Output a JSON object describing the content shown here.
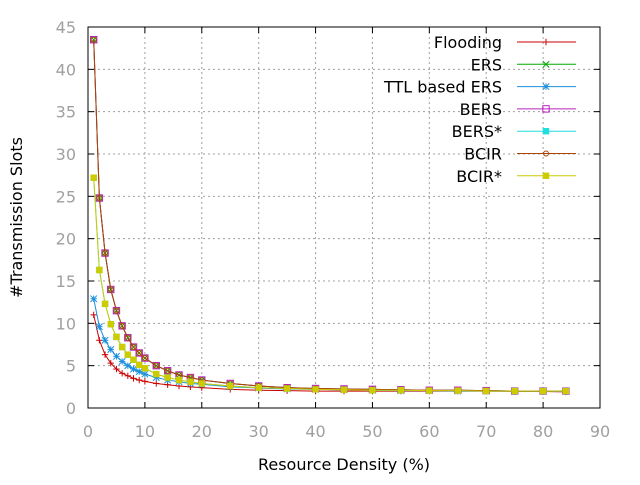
{
  "chart_data": {
    "type": "line",
    "xlabel": "Resource Density (%)",
    "ylabel": "#Transmission Slots",
    "xlim": [
      0,
      90
    ],
    "ylim": [
      0,
      45
    ],
    "xticks": [
      "0",
      "10",
      "20",
      "30",
      "40",
      "50",
      "60",
      "70",
      "80",
      "90"
    ],
    "yticks": [
      "0",
      "5",
      "10",
      "15",
      "20",
      "25",
      "30",
      "35",
      "40",
      "45"
    ],
    "grid": true,
    "legend_position": "top-right",
    "x": [
      1,
      2,
      3,
      4,
      5,
      6,
      7,
      8,
      9,
      10,
      12,
      14,
      16,
      18,
      20,
      25,
      30,
      35,
      40,
      45,
      50,
      55,
      60,
      65,
      70,
      75,
      80,
      84
    ],
    "series": [
      {
        "name": "Flooding",
        "color": "#cc0000",
        "marker": "plus",
        "values": [
          11.0,
          8.0,
          6.3,
          5.3,
          4.6,
          4.1,
          3.8,
          3.5,
          3.3,
          3.15,
          2.9,
          2.75,
          2.6,
          2.5,
          2.4,
          2.2,
          2.1,
          2.05,
          2.0,
          2.0,
          2.0,
          2.0,
          2.0,
          2.0,
          2.0,
          1.95,
          1.95,
          1.9
        ]
      },
      {
        "name": "ERS",
        "color": "#00aa00",
        "marker": "cross",
        "values": [
          43.5,
          24.8,
          18.3,
          14.0,
          11.5,
          9.7,
          8.3,
          7.2,
          6.5,
          5.9,
          5.0,
          4.4,
          3.9,
          3.6,
          3.3,
          2.9,
          2.6,
          2.4,
          2.3,
          2.25,
          2.2,
          2.15,
          2.1,
          2.1,
          2.05,
          2.0,
          2.0,
          2.0
        ]
      },
      {
        "name": "TTL based ERS",
        "color": "#1a8fdd",
        "marker": "star",
        "values": [
          12.9,
          9.6,
          8.0,
          6.9,
          6.1,
          5.5,
          5.0,
          4.6,
          4.3,
          4.0,
          3.6,
          3.3,
          3.1,
          2.9,
          2.8,
          2.5,
          2.35,
          2.25,
          2.2,
          2.15,
          2.1,
          2.05,
          2.05,
          2.0,
          2.0,
          2.0,
          2.0,
          1.95
        ]
      },
      {
        "name": "BERS",
        "color": "#bb22bb",
        "marker": "square-open",
        "values": [
          43.5,
          24.8,
          18.3,
          14.0,
          11.5,
          9.7,
          8.3,
          7.2,
          6.5,
          5.9,
          5.0,
          4.4,
          3.9,
          3.6,
          3.3,
          2.9,
          2.6,
          2.4,
          2.3,
          2.25,
          2.2,
          2.15,
          2.1,
          2.1,
          2.05,
          2.0,
          2.0,
          2.0
        ]
      },
      {
        "name": "BERS*",
        "color": "#22dddd",
        "marker": "square-filled",
        "values": [
          27.2,
          16.3,
          12.3,
          9.9,
          8.4,
          7.2,
          6.3,
          5.7,
          5.1,
          4.7,
          4.0,
          3.6,
          3.3,
          3.1,
          2.9,
          2.6,
          2.4,
          2.3,
          2.2,
          2.15,
          2.1,
          2.1,
          2.05,
          2.05,
          2.0,
          2.0,
          2.0,
          2.0
        ]
      },
      {
        "name": "BCIR",
        "color": "#aa4400",
        "marker": "circle-open",
        "values": [
          43.5,
          24.8,
          18.3,
          14.0,
          11.5,
          9.7,
          8.3,
          7.2,
          6.5,
          5.9,
          5.0,
          4.4,
          3.9,
          3.6,
          3.3,
          2.9,
          2.6,
          2.4,
          2.3,
          2.25,
          2.2,
          2.15,
          2.1,
          2.1,
          2.05,
          2.0,
          2.0,
          2.0
        ]
      },
      {
        "name": "BCIR*",
        "color": "#cccc00",
        "marker": "square-filled",
        "values": [
          27.2,
          16.3,
          12.3,
          9.9,
          8.4,
          7.2,
          6.3,
          5.7,
          5.1,
          4.7,
          4.0,
          3.6,
          3.3,
          3.1,
          2.9,
          2.6,
          2.4,
          2.3,
          2.2,
          2.15,
          2.1,
          2.1,
          2.05,
          2.05,
          2.0,
          2.0,
          2.0,
          2.0
        ]
      }
    ]
  }
}
